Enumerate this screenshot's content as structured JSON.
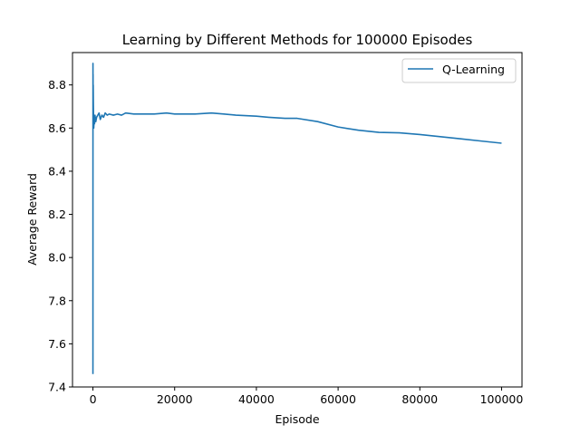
{
  "chart_data": {
    "type": "line",
    "title": "Learning by Different Methods for 100000 Episodes",
    "xlabel": "Episode",
    "ylabel": "Average Reward",
    "xlim": [
      -5000,
      105000
    ],
    "ylim": [
      7.4,
      8.95
    ],
    "xticks": [
      0,
      20000,
      40000,
      60000,
      80000,
      100000
    ],
    "xtick_labels": [
      "0",
      "20000",
      "40000",
      "60000",
      "80000",
      "100000"
    ],
    "yticks": [
      7.4,
      7.6,
      7.8,
      8.0,
      8.2,
      8.4,
      8.6,
      8.8
    ],
    "ytick_labels": [
      "7.4",
      "7.6",
      "7.8",
      "8.0",
      "8.2",
      "8.4",
      "8.6",
      "8.8"
    ],
    "grid": false,
    "legend_position": "top-right",
    "series": [
      {
        "name": "Q-Learning",
        "color": "#1f77b4",
        "x": [
          1,
          5,
          10,
          20,
          30,
          50,
          70,
          100,
          150,
          200,
          300,
          400,
          500,
          700,
          900,
          1200,
          1500,
          1800,
          2200,
          2600,
          3000,
          3500,
          4000,
          5000,
          6000,
          7000,
          8000,
          10000,
          12000,
          15000,
          18000,
          20000,
          25000,
          29000,
          32000,
          35000,
          40000,
          43000,
          47000,
          50000,
          55000,
          60000,
          65000,
          70000,
          75000,
          80000,
          85000,
          90000,
          95000,
          100000
        ],
        "y": [
          7.46,
          8.0,
          8.9,
          8.6,
          8.85,
          8.7,
          8.8,
          8.72,
          8.65,
          8.6,
          8.64,
          8.62,
          8.66,
          8.63,
          8.65,
          8.66,
          8.67,
          8.64,
          8.66,
          8.65,
          8.67,
          8.66,
          8.665,
          8.66,
          8.665,
          8.66,
          8.67,
          8.665,
          8.665,
          8.665,
          8.67,
          8.665,
          8.665,
          8.67,
          8.665,
          8.66,
          8.655,
          8.65,
          8.645,
          8.645,
          8.63,
          8.605,
          8.59,
          8.58,
          8.578,
          8.57,
          8.56,
          8.55,
          8.54,
          8.53
        ]
      }
    ]
  }
}
